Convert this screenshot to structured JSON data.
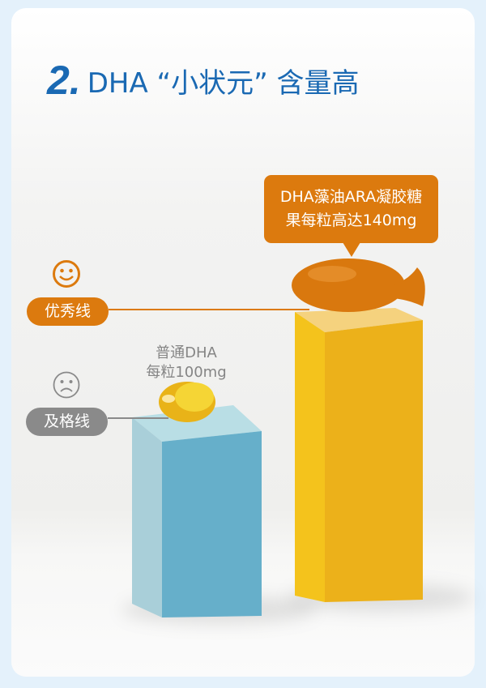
{
  "title": {
    "number": "2.",
    "text": "DHA “小状元” 含量高"
  },
  "callout": {
    "line1": "DHA藻油ARA凝胶糖",
    "line2": "果每粒高达140mg"
  },
  "levels": {
    "excellent": {
      "label": "优秀线",
      "icon": "smiley-face-icon"
    },
    "pass": {
      "label": "及格线",
      "icon": "sad-face-icon"
    }
  },
  "ordinary": {
    "line1": "普通DHA",
    "line2": "每粒100mg"
  },
  "colors": {
    "title": "#1a69b3",
    "accent_orange": "#dc7a0e",
    "gray": "#8a8a8a",
    "blue_box": "#67b0cb",
    "yellow_box": "#edb21a"
  }
}
